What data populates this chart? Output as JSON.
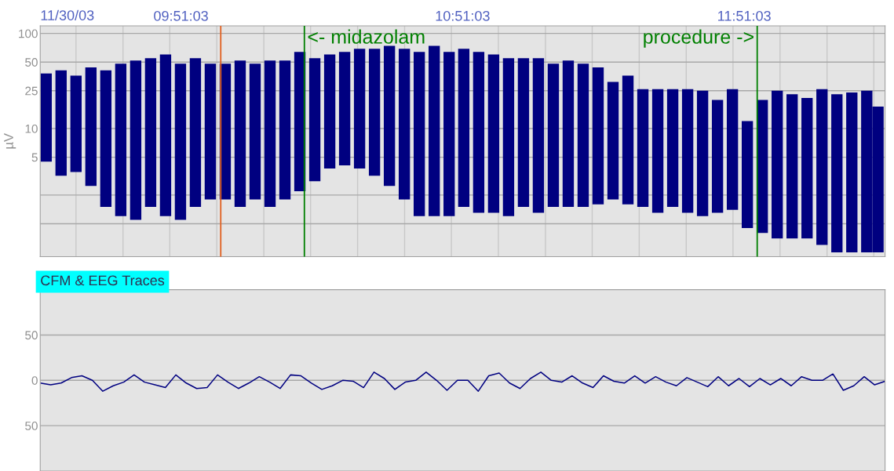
{
  "chart_data": [
    {
      "type": "bar",
      "log": true,
      "ylabel": "µV",
      "annotations": [
        "11/30/03"
      ],
      "color": "#000080",
      "x": [
        9.372,
        9.425,
        9.478,
        9.531,
        9.584,
        9.637,
        9.69,
        9.743,
        9.796,
        9.849,
        9.902,
        9.955,
        10.008,
        10.061,
        10.114,
        10.167,
        10.22,
        10.273,
        10.326,
        10.379,
        10.432,
        10.485,
        10.538,
        10.591,
        10.644,
        10.697,
        10.75,
        10.803,
        10.855,
        10.908,
        10.961,
        11.014,
        11.067,
        11.12,
        11.173,
        11.226,
        11.279,
        11.332,
        11.385,
        11.438,
        11.491,
        11.544,
        11.597,
        11.65,
        11.703,
        11.756,
        11.809,
        11.862,
        11.915,
        11.968,
        12.021,
        12.074,
        12.127,
        12.18,
        12.233,
        12.286,
        12.326
      ],
      "base": [
        4.5,
        3.2,
        3.5,
        2.5,
        1.5,
        1.2,
        1.1,
        1.5,
        1.2,
        1.1,
        1.5,
        1.8,
        1.8,
        1.5,
        1.8,
        1.5,
        1.8,
        2.2,
        2.8,
        3.8,
        4.1,
        3.8,
        3.2,
        2.5,
        1.8,
        1.2,
        1.2,
        1.2,
        1.5,
        1.3,
        1.3,
        1.2,
        1.5,
        1.3,
        1.5,
        1.5,
        1.5,
        1.6,
        1.8,
        1.6,
        1.5,
        1.3,
        1.5,
        1.3,
        1.2,
        1.3,
        1.4,
        0.9,
        0.8,
        0.7,
        0.7,
        0.7,
        0.6,
        0.5,
        0.5,
        0.5,
        0.5
      ],
      "values": [
        33.5,
        37.8,
        32.5,
        41.5,
        39.5,
        46.8,
        50.9,
        53.5,
        58.8,
        46.9,
        53.5,
        46.2,
        46.2,
        50.5,
        46.2,
        50.5,
        50.2,
        61.8,
        52.2,
        56.2,
        59.9,
        65.2,
        65.8,
        71.5,
        67.2,
        62.8,
        72.8,
        62.8,
        67.5,
        62.7,
        58.7,
        53.8,
        53.5,
        53.7,
        46.5,
        50.5,
        46.5,
        42.4,
        29.2,
        34.4,
        24.5,
        24.7,
        24.5,
        24.7,
        23.8,
        18.7,
        24.6,
        11.1,
        19.2,
        24.3,
        22.3,
        20.3,
        25.4,
        22.5,
        23.5,
        24.5,
        16.5
      ],
      "xlim": [
        9.351,
        12.351
      ],
      "xticks": [
        {
          "value": 9.478,
          "label": null
        },
        {
          "value": 9.645,
          "label": null
        },
        {
          "value": 9.811,
          "label": null
        },
        {
          "value": 9.8508,
          "label": "09:51:03"
        },
        {
          "value": 9.978,
          "label": null
        },
        {
          "value": 10.145,
          "label": null
        },
        {
          "value": 10.311,
          "label": null
        },
        {
          "value": 10.478,
          "label": null
        },
        {
          "value": 10.645,
          "label": null
        },
        {
          "value": 10.811,
          "label": null
        },
        {
          "value": 10.8508,
          "label": "10:51:03"
        },
        {
          "value": 10.978,
          "label": null
        },
        {
          "value": 11.145,
          "label": null
        },
        {
          "value": 11.311,
          "label": null
        },
        {
          "value": 11.478,
          "label": null
        },
        {
          "value": 11.645,
          "label": null
        },
        {
          "value": 11.811,
          "label": null
        },
        {
          "value": 11.8508,
          "label": "11:51:03"
        },
        {
          "value": 11.978,
          "label": null
        },
        {
          "value": 12.145,
          "label": null
        },
        {
          "value": 12.311,
          "label": null
        }
      ],
      "ylim": [
        0.45,
        120
      ],
      "yticks": [
        {
          "value": 1,
          "label": null
        },
        {
          "value": 2,
          "label": null
        },
        5,
        10,
        25,
        50,
        100
      ],
      "grid": true,
      "ref_lines": [
        {
          "axis": "x",
          "value": 9.992,
          "color": "#e06020"
        },
        {
          "axis": "x",
          "value": 10.289,
          "label": "<- midazolam",
          "color": "#008000"
        },
        {
          "axis": "x",
          "value": 11.897,
          "label": "procedure ->",
          "color": "#008000"
        }
      ]
    },
    {
      "type": "line",
      "title": "CFM & EEG Traces",
      "color": "#000080",
      "categories": [
        null,
        null,
        null,
        null,
        null,
        null,
        null,
        null,
        null,
        null,
        null,
        null,
        null,
        null,
        null,
        null,
        null,
        null,
        null,
        null,
        null,
        null,
        null,
        null,
        null,
        null,
        null,
        null,
        null,
        null,
        null,
        null,
        null,
        null,
        null,
        null,
        null,
        null,
        null,
        null,
        null,
        null,
        null,
        null,
        null,
        null,
        null,
        null,
        null,
        null,
        null,
        null,
        null,
        null,
        null,
        null,
        null,
        null,
        null,
        null,
        null,
        null,
        null,
        null,
        null,
        null,
        null,
        null,
        null,
        null,
        null,
        null,
        null,
        null,
        null,
        null,
        null,
        null,
        null,
        null,
        null,
        null
      ],
      "values": [
        -3,
        -5,
        -3,
        3,
        5,
        0,
        -12,
        -6,
        -2,
        6,
        -2,
        -5,
        -8,
        6,
        -3,
        -9,
        -8,
        6,
        -2,
        -9,
        -3,
        4,
        -2,
        -9,
        6,
        5,
        -3,
        -10,
        -6,
        0,
        -1,
        -8,
        9,
        2,
        -10,
        -2,
        0,
        9,
        0,
        -11,
        0,
        0,
        -12,
        5,
        8,
        -3,
        -9,
        2,
        9,
        0,
        -2,
        5,
        -3,
        -8,
        5,
        -1,
        -3,
        5,
        -3,
        4,
        -2,
        -6,
        3,
        -2,
        -7,
        4,
        -6,
        2,
        -7,
        2,
        -5,
        2,
        -6,
        4,
        0,
        0,
        7,
        -11,
        -6,
        4,
        -5,
        -1
      ],
      "ylim": [
        -100,
        100
      ],
      "yticks": [
        {
          "value": 50,
          "label": "50"
        },
        0,
        {
          "value": -50,
          "label": "50"
        }
      ],
      "grid": "y",
      "tick_labels": "y"
    }
  ]
}
